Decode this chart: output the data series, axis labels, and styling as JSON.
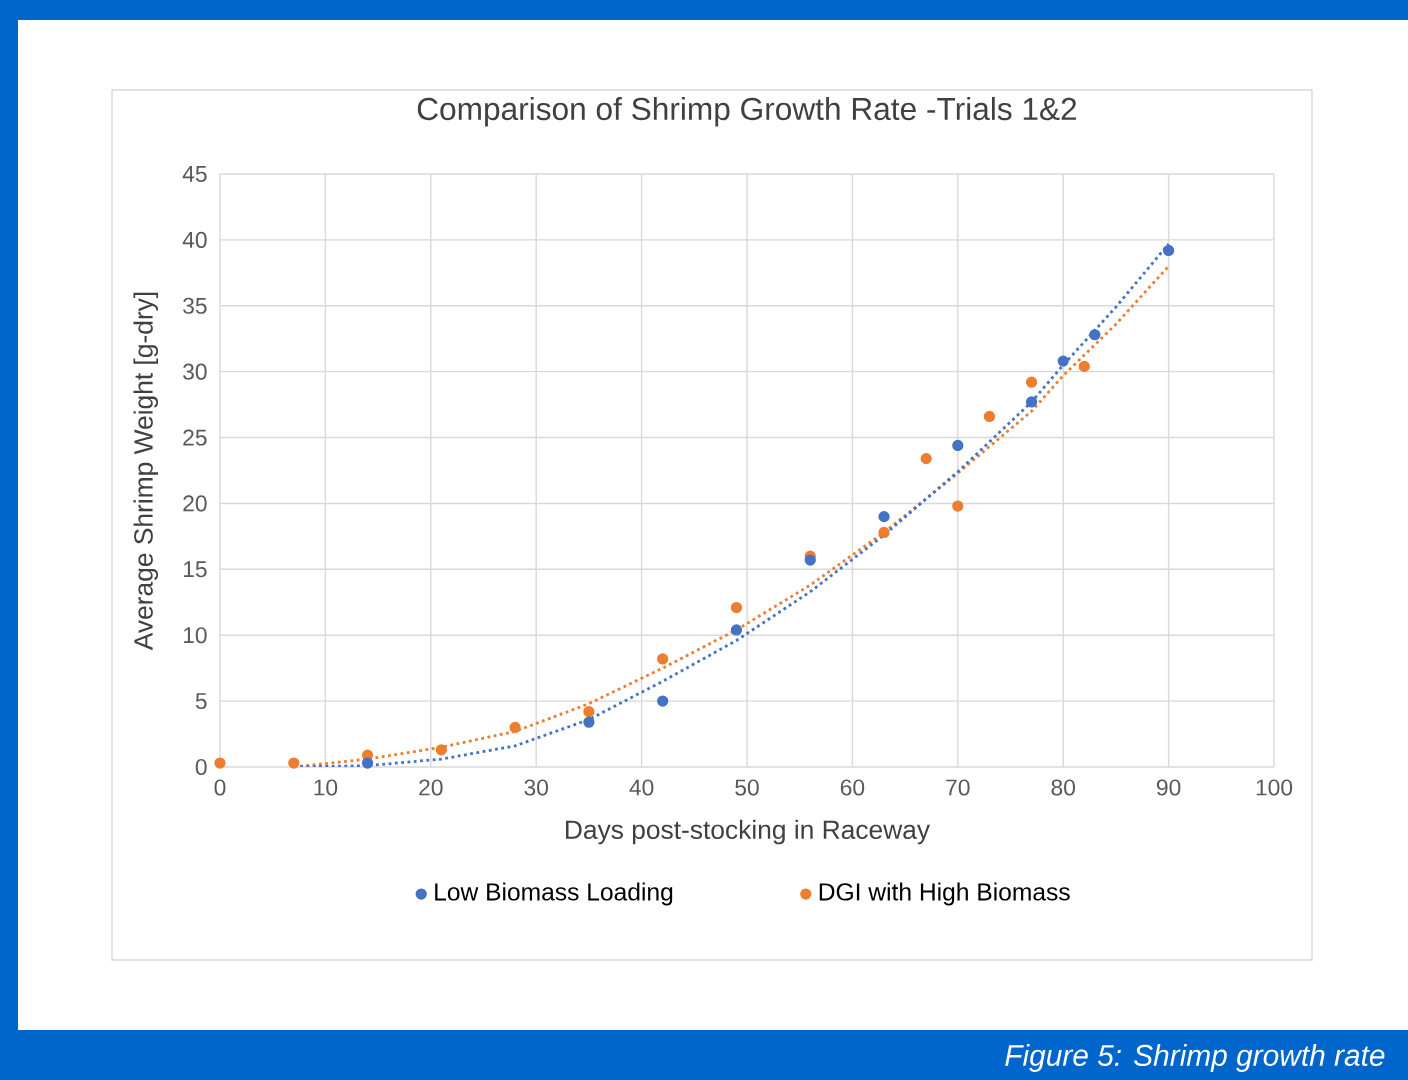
{
  "chart_data": {
    "type": "scatter",
    "title": "Comparison of Shrimp Growth Rate -Trials 1&2",
    "xlabel": "Days post-stocking in Raceway",
    "ylabel": "Average Shrimp Weight [g-dry]",
    "xlim": [
      0,
      100
    ],
    "xticks": [
      0,
      10,
      20,
      30,
      40,
      50,
      60,
      70,
      80,
      90,
      100
    ],
    "ylim": [
      0,
      45
    ],
    "yticks": [
      0,
      5,
      10,
      15,
      20,
      25,
      30,
      35,
      40,
      45
    ],
    "grid": true,
    "legend": "bottom",
    "marker": "circle",
    "series": [
      {
        "name": "Low Biomass Loading",
        "color": "#4472c4",
        "x": [
          14,
          35,
          42,
          49,
          56,
          63,
          70,
          77,
          80,
          83,
          90
        ],
        "values": [
          0.3,
          3.4,
          5.0,
          10.4,
          15.7,
          19.0,
          24.4,
          27.7,
          30.8,
          32.8,
          39.2
        ]
      },
      {
        "name": "DGI with High Biomass",
        "color": "#ed7d31",
        "x": [
          0,
          7,
          14,
          21,
          28,
          35,
          42,
          49,
          56,
          63,
          67,
          70,
          73,
          77,
          82
        ],
        "values": [
          0.3,
          0.3,
          0.9,
          1.3,
          3.0,
          4.2,
          8.2,
          12.1,
          16.0,
          17.8,
          23.4,
          19.8,
          26.6,
          29.2,
          30.4
        ]
      },
      {
        "type": "line",
        "line_style": "dotted",
        "marker": "none",
        "color": "#4472c4",
        "x": [
          7,
          14,
          21,
          28,
          35,
          42,
          49,
          56,
          63,
          70,
          77,
          80,
          85,
          90
        ],
        "values": [
          0,
          0.1,
          0.6,
          1.6,
          3.6,
          6.5,
          9.6,
          13.3,
          17.6,
          22.4,
          27.7,
          30.5,
          34.9,
          39.7
        ]
      },
      {
        "type": "line",
        "line_style": "dotted",
        "marker": "none",
        "color": "#ed7d31",
        "x": [
          7,
          14,
          21,
          28,
          35,
          42,
          49,
          56,
          63,
          70,
          77,
          80,
          85,
          90
        ],
        "values": [
          0,
          0.6,
          1.5,
          2.7,
          4.8,
          7.5,
          10.4,
          13.8,
          17.8,
          22.3,
          27.0,
          29.7,
          33.6,
          38.0
        ]
      }
    ],
    "annotations": [
      "Figure 5: Shrimp growth rate"
    ]
  }
}
